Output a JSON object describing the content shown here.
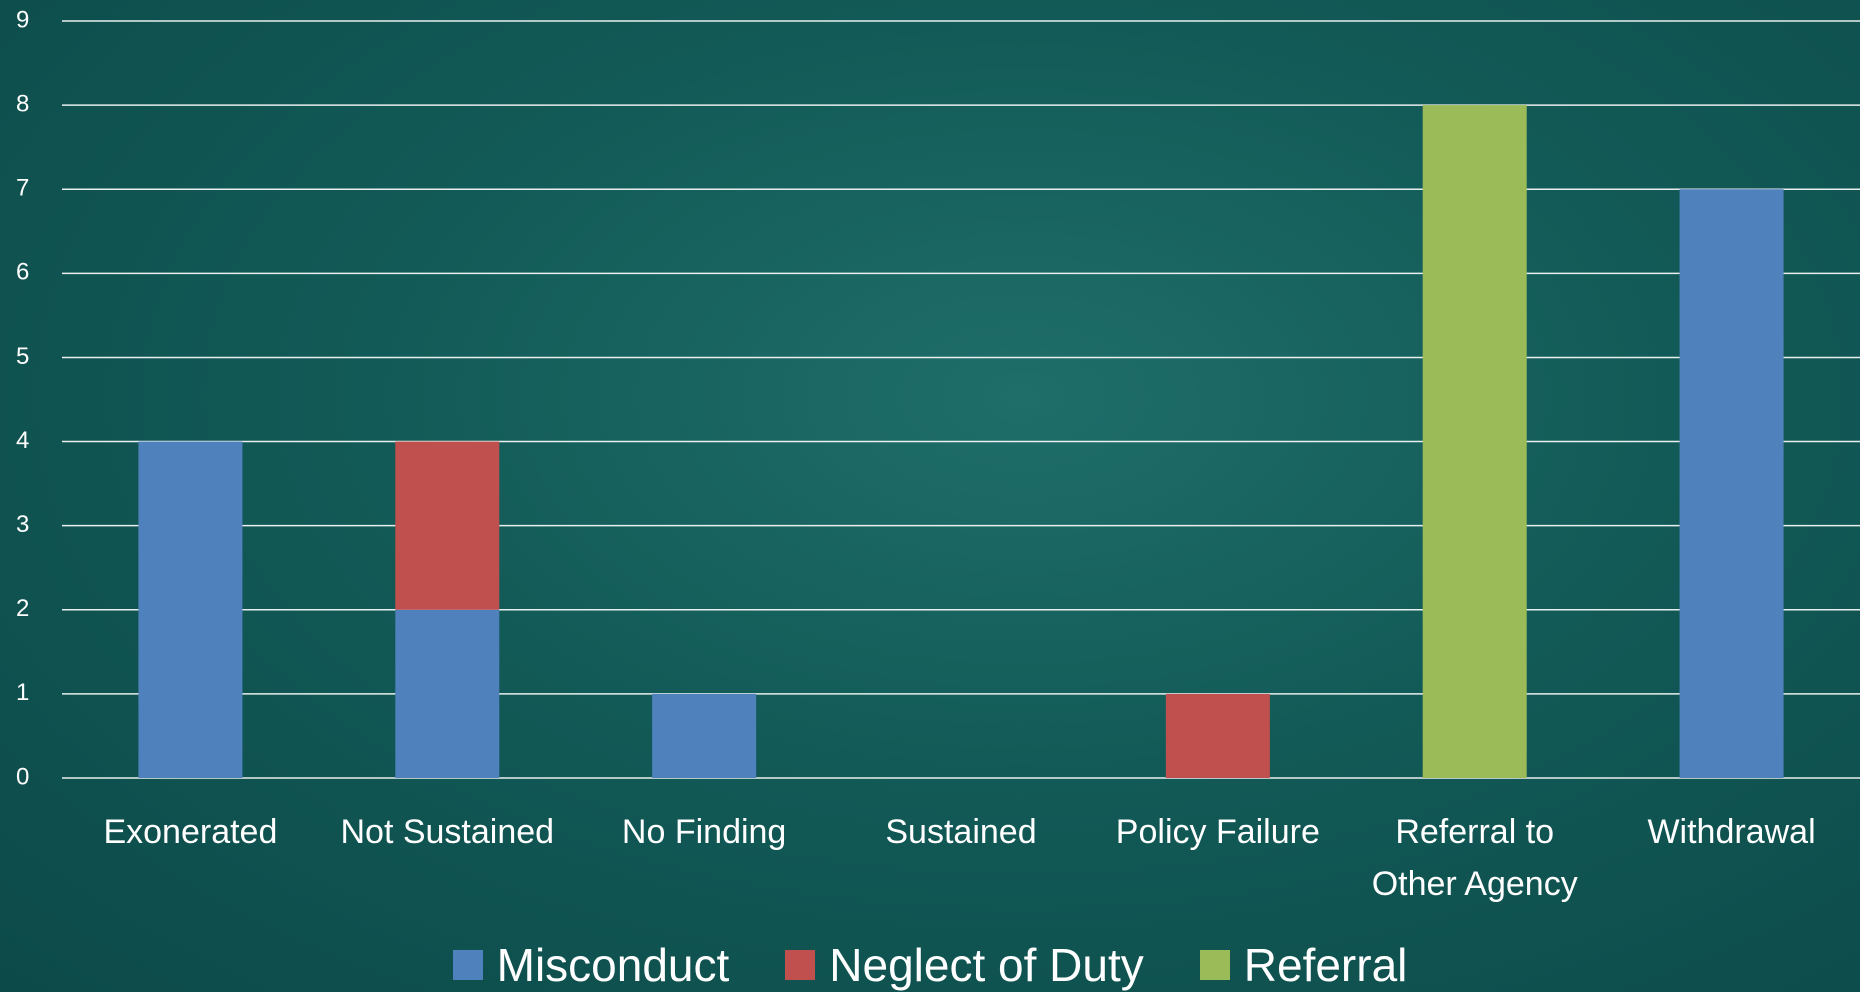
{
  "chart_data": {
    "type": "stacked_bar",
    "categories": [
      "Exonerated",
      "Not Sustained",
      "No Finding",
      "Sustained",
      "Policy Failure",
      "Referral to Other Agency",
      "Withdrawal"
    ],
    "series": [
      {
        "name": "Misconduct",
        "color": "#4f81bd",
        "values": [
          4,
          2,
          1,
          0,
          0,
          0,
          7
        ]
      },
      {
        "name": "Neglect of Duty",
        "color": "#c0504d",
        "values": [
          0,
          2,
          0,
          0,
          1,
          0,
          0
        ]
      },
      {
        "name": "Referral",
        "color": "#9bbb59",
        "values": [
          0,
          0,
          0,
          0,
          0,
          8,
          0
        ]
      }
    ],
    "ylim": [
      0,
      9
    ],
    "yticks": [
      0,
      1,
      2,
      3,
      4,
      5,
      6,
      7,
      8,
      9
    ],
    "grid": true,
    "legend": "bottom"
  }
}
